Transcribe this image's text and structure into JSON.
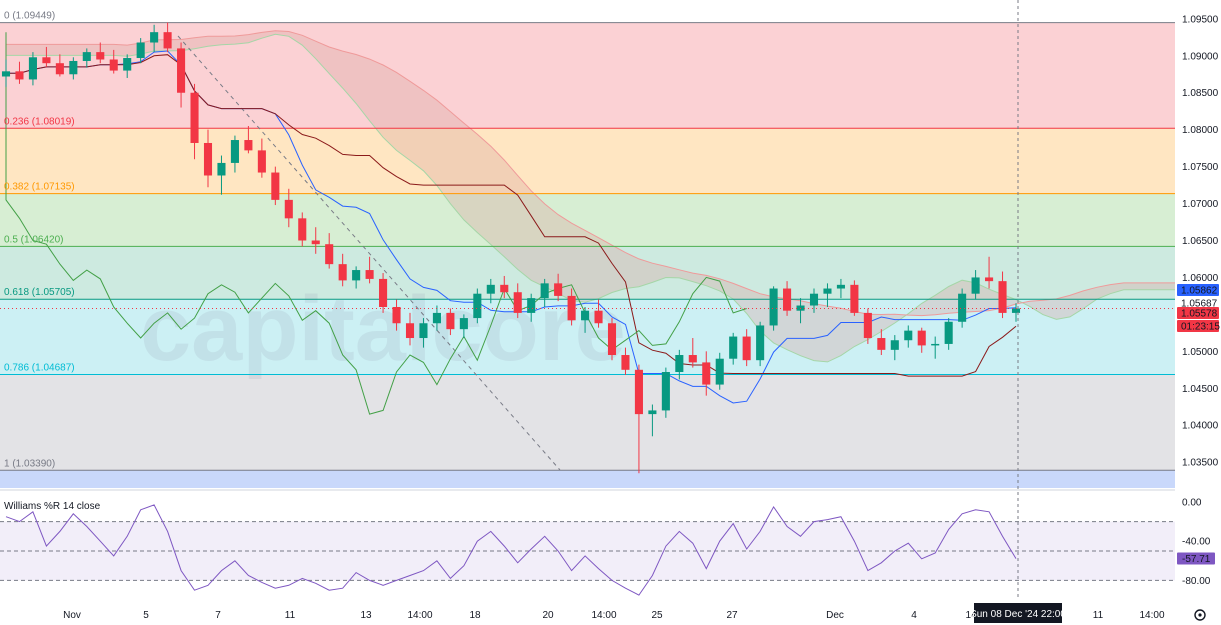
{
  "chart_data": {
    "type": "candlestick",
    "watermark": "capitalcore",
    "price_axis": {
      "ticks": [
        "1.09500",
        "1.09000",
        "1.08500",
        "1.08000",
        "1.07500",
        "1.07000",
        "1.06500",
        "1.06000",
        "1.05500",
        "1.05000",
        "1.04500",
        "1.04000",
        "1.03500"
      ],
      "ylim": [
        1.0315,
        1.0962
      ]
    },
    "time_axis": {
      "ticks": [
        "Nov",
        "5",
        "7",
        "11",
        "13",
        "14:00",
        "18",
        "20",
        "14:00",
        "25",
        "27",
        "Dec",
        "4",
        "14:00",
        "11",
        "14:00"
      ],
      "crosshair_label": "Sun 08 Dec '24  22:00"
    },
    "fibonacci": {
      "levels": [
        {
          "label": "0 (1.09449)",
          "value": 1.09449,
          "color": "#787b86"
        },
        {
          "label": "0.236 (1.08019)",
          "value": 1.08019,
          "color": "#f23645"
        },
        {
          "label": "0.382 (1.07135)",
          "value": 1.07135,
          "color": "#ff9800"
        },
        {
          "label": "0.5 (1.06420)",
          "value": 1.0642,
          "color": "#4caf50"
        },
        {
          "label": "0.618 (1.05705)",
          "value": 1.05705,
          "color": "#089981"
        },
        {
          "label": "0.786 (1.04687)",
          "value": 1.04687,
          "color": "#00bcd4"
        },
        {
          "label": "1 (1.03390)",
          "value": 1.0339,
          "color": "#787b86"
        }
      ]
    },
    "price_badges": [
      {
        "value": "1.05862",
        "color": "#2962ff"
      },
      {
        "value": "1.05687",
        "color": "#ffffff"
      },
      {
        "value": "1.05578",
        "color": "#f23645"
      },
      {
        "value": "01:23:15",
        "color": "#f23645"
      }
    ],
    "candles": [
      [
        1.0872,
        1.0895,
        1.0858,
        1.0879
      ],
      [
        1.0879,
        1.0892,
        1.0862,
        1.0868
      ],
      [
        1.0868,
        1.0905,
        1.086,
        1.0898
      ],
      [
        1.0898,
        1.0912,
        1.0885,
        1.089
      ],
      [
        1.089,
        1.0902,
        1.0872,
        1.0875
      ],
      [
        1.0875,
        1.0898,
        1.0868,
        1.0893
      ],
      [
        1.0893,
        1.091,
        1.0884,
        1.0905
      ],
      [
        1.0905,
        1.0918,
        1.089,
        1.0895
      ],
      [
        1.0895,
        1.0908,
        1.0876,
        1.088
      ],
      [
        1.088,
        1.0902,
        1.087,
        1.0897
      ],
      [
        1.0897,
        1.0924,
        1.089,
        1.0918
      ],
      [
        1.0918,
        1.0942,
        1.0905,
        1.0932
      ],
      [
        1.0932,
        1.0945,
        1.0905,
        1.091
      ],
      [
        1.091,
        1.0918,
        1.083,
        1.085
      ],
      [
        1.085,
        1.0862,
        1.076,
        1.0782
      ],
      [
        1.0782,
        1.08,
        1.0722,
        1.0738
      ],
      [
        1.0738,
        1.0765,
        1.0712,
        1.0755
      ],
      [
        1.0755,
        1.0792,
        1.0742,
        1.0786
      ],
      [
        1.0786,
        1.0805,
        1.0768,
        1.0772
      ],
      [
        1.0772,
        1.0788,
        1.0735,
        1.0742
      ],
      [
        1.0742,
        1.075,
        1.0698,
        1.0705
      ],
      [
        1.0705,
        1.072,
        1.0668,
        1.068
      ],
      [
        1.068,
        1.0688,
        1.0642,
        1.065
      ],
      [
        1.065,
        1.0668,
        1.0632,
        1.0645
      ],
      [
        1.0645,
        1.066,
        1.0612,
        1.0618
      ],
      [
        1.0618,
        1.0632,
        1.0588,
        1.0596
      ],
      [
        1.0596,
        1.0615,
        1.0585,
        1.061
      ],
      [
        1.061,
        1.0628,
        1.0592,
        1.0598
      ],
      [
        1.0598,
        1.0606,
        1.0552,
        1.056
      ],
      [
        1.056,
        1.057,
        1.0528,
        1.0538
      ],
      [
        1.0538,
        1.0552,
        1.0508,
        1.0518
      ],
      [
        1.0518,
        1.0545,
        1.0505,
        1.0538
      ],
      [
        1.0538,
        1.0562,
        1.0528,
        1.0552
      ],
      [
        1.0552,
        1.0558,
        1.0522,
        1.053
      ],
      [
        1.053,
        1.055,
        1.0518,
        1.0545
      ],
      [
        1.0545,
        1.0585,
        1.0538,
        1.0578
      ],
      [
        1.0578,
        1.0598,
        1.0565,
        1.059
      ],
      [
        1.059,
        1.0602,
        1.0572,
        1.058
      ],
      [
        1.058,
        1.0592,
        1.0545,
        1.0552
      ],
      [
        1.0552,
        1.0578,
        1.054,
        1.0572
      ],
      [
        1.0572,
        1.0598,
        1.056,
        1.0592
      ],
      [
        1.0592,
        1.0605,
        1.0568,
        1.0575
      ],
      [
        1.0575,
        1.0585,
        1.0535,
        1.0542
      ],
      [
        1.0542,
        1.056,
        1.0525,
        1.0555
      ],
      [
        1.0555,
        1.057,
        1.0532,
        1.0538
      ],
      [
        1.0538,
        1.0545,
        1.0488,
        1.0495
      ],
      [
        1.0495,
        1.0505,
        1.0468,
        1.0475
      ],
      [
        1.0475,
        1.0482,
        1.0335,
        1.0415
      ],
      [
        1.0415,
        1.0428,
        1.0385,
        1.042
      ],
      [
        1.042,
        1.0478,
        1.041,
        1.0472
      ],
      [
        1.0472,
        1.0502,
        1.0462,
        1.0495
      ],
      [
        1.0495,
        1.0518,
        1.0478,
        1.0485
      ],
      [
        1.0485,
        1.05,
        1.044,
        1.0455
      ],
      [
        1.0455,
        1.0498,
        1.0448,
        1.049
      ],
      [
        1.049,
        1.0525,
        1.0482,
        1.052
      ],
      [
        1.052,
        1.053,
        1.048,
        1.0488
      ],
      [
        1.0488,
        1.054,
        1.048,
        1.0535
      ],
      [
        1.0535,
        1.0588,
        1.0528,
        1.0585
      ],
      [
        1.0585,
        1.0595,
        1.0548,
        1.0555
      ],
      [
        1.0555,
        1.0572,
        1.0538,
        1.0562
      ],
      [
        1.0562,
        1.0585,
        1.0552,
        1.0578
      ],
      [
        1.0578,
        1.0592,
        1.056,
        1.0585
      ],
      [
        1.0585,
        1.0598,
        1.0572,
        1.059
      ],
      [
        1.059,
        1.0596,
        1.0548,
        1.0552
      ],
      [
        1.0552,
        1.0558,
        1.051,
        1.0518
      ],
      [
        1.0518,
        1.053,
        1.0495,
        1.0502
      ],
      [
        1.0502,
        1.0522,
        1.0488,
        1.0515
      ],
      [
        1.0515,
        1.0535,
        1.0505,
        1.0528
      ],
      [
        1.0528,
        1.0532,
        1.0498,
        1.0508
      ],
      [
        1.0508,
        1.052,
        1.049,
        1.051
      ],
      [
        1.051,
        1.0545,
        1.0502,
        1.054
      ],
      [
        1.054,
        1.0585,
        1.0532,
        1.0578
      ],
      [
        1.0578,
        1.061,
        1.057,
        1.06
      ],
      [
        1.06,
        1.0628,
        1.0585,
        1.0595
      ],
      [
        1.0595,
        1.0608,
        1.0545,
        1.0552
      ],
      [
        1.0552,
        1.0565,
        1.054,
        1.0558
      ]
    ],
    "williams_r": {
      "label": "Williams %R 14 close",
      "ticks": [
        "0.00",
        "-40.00",
        "-80.00"
      ],
      "levels": [
        -20,
        -50,
        -80
      ],
      "current": "-57.71",
      "values": [
        -15,
        -20,
        -10,
        -45,
        -30,
        -12,
        -25,
        -40,
        -55,
        -35,
        -8,
        -3,
        -30,
        -70,
        -90,
        -85,
        -70,
        -60,
        -75,
        -82,
        -88,
        -85,
        -78,
        -83,
        -90,
        -88,
        -72,
        -80,
        -85,
        -80,
        -75,
        -70,
        -60,
        -78,
        -65,
        -40,
        -30,
        -45,
        -62,
        -48,
        -35,
        -50,
        -70,
        -55,
        -68,
        -80,
        -88,
        -95,
        -75,
        -45,
        -30,
        -42,
        -68,
        -40,
        -22,
        -48,
        -30,
        -5,
        -25,
        -35,
        -20,
        -18,
        -15,
        -40,
        -70,
        -62,
        -50,
        -42,
        -58,
        -52,
        -28,
        -12,
        -8,
        -10,
        -35,
        -57.71
      ]
    }
  }
}
